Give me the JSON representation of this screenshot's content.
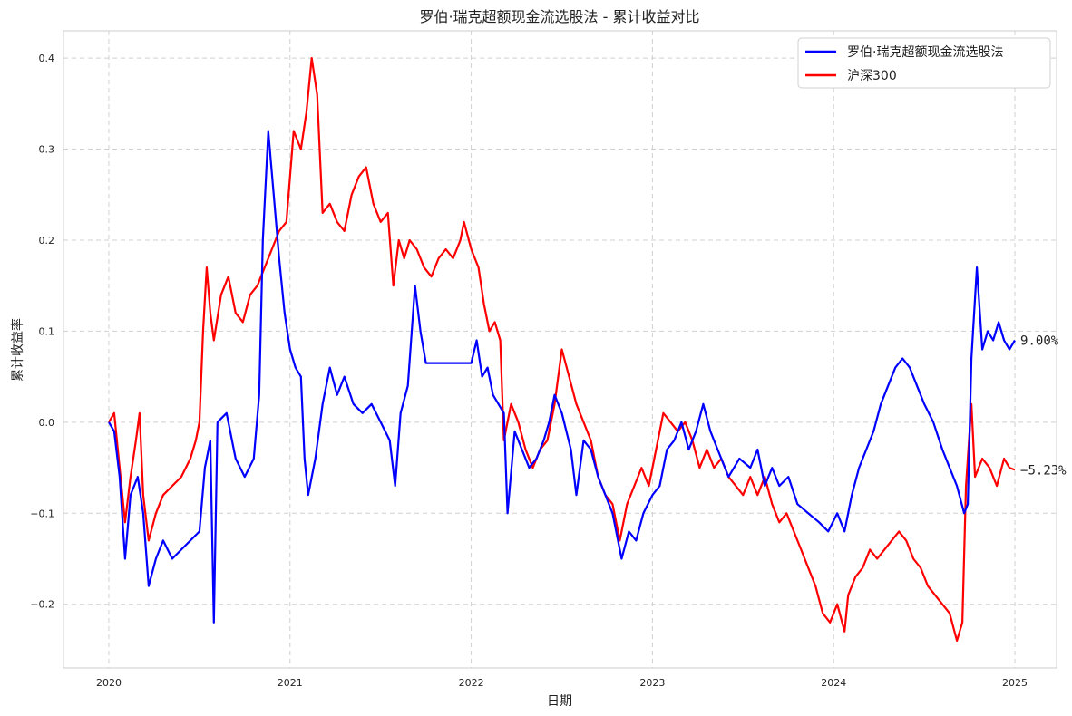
{
  "chart_data": {
    "type": "line",
    "title": "罗伯·瑞克超额现金流选股法 - 累计收益对比",
    "xlabel": "日期",
    "ylabel": "累计收益率",
    "xlim": [
      2019.75,
      2025.23
    ],
    "ylim": [
      -0.27,
      0.43
    ],
    "xticks": [
      2020,
      2021,
      2022,
      2023,
      2024,
      2025
    ],
    "xtick_labels": [
      "2020",
      "2021",
      "2022",
      "2023",
      "2024",
      "2025"
    ],
    "yticks": [
      -0.2,
      -0.1,
      0.0,
      0.1,
      0.2,
      0.3,
      0.4
    ],
    "ytick_labels": [
      "−0.2",
      "−0.1",
      "0.0",
      "0.1",
      "0.2",
      "0.3",
      "0.4"
    ],
    "grid": true,
    "legend_position": "top-right",
    "series": [
      {
        "name": "罗伯·瑞克超额现金流选股法",
        "color": "#0000ff",
        "end_label": "9.00%",
        "points": [
          [
            2020.0,
            0.0
          ],
          [
            2020.03,
            -0.01
          ],
          [
            2020.06,
            -0.06
          ],
          [
            2020.09,
            -0.15
          ],
          [
            2020.12,
            -0.08
          ],
          [
            2020.16,
            -0.06
          ],
          [
            2020.19,
            -0.1
          ],
          [
            2020.22,
            -0.18
          ],
          [
            2020.26,
            -0.15
          ],
          [
            2020.3,
            -0.13
          ],
          [
            2020.35,
            -0.15
          ],
          [
            2020.4,
            -0.14
          ],
          [
            2020.45,
            -0.13
          ],
          [
            2020.5,
            -0.12
          ],
          [
            2020.53,
            -0.05
          ],
          [
            2020.56,
            -0.02
          ],
          [
            2020.58,
            -0.22
          ],
          [
            2020.6,
            0.0
          ],
          [
            2020.65,
            0.01
          ],
          [
            2020.7,
            -0.04
          ],
          [
            2020.75,
            -0.06
          ],
          [
            2020.8,
            -0.04
          ],
          [
            2020.83,
            0.03
          ],
          [
            2020.85,
            0.2
          ],
          [
            2020.88,
            0.32
          ],
          [
            2020.91,
            0.25
          ],
          [
            2020.94,
            0.18
          ],
          [
            2020.97,
            0.12
          ],
          [
            2021.0,
            0.08
          ],
          [
            2021.03,
            0.06
          ],
          [
            2021.06,
            0.05
          ],
          [
            2021.08,
            -0.04
          ],
          [
            2021.1,
            -0.08
          ],
          [
            2021.14,
            -0.04
          ],
          [
            2021.18,
            0.02
          ],
          [
            2021.22,
            0.06
          ],
          [
            2021.26,
            0.03
          ],
          [
            2021.3,
            0.05
          ],
          [
            2021.35,
            0.02
          ],
          [
            2021.4,
            0.01
          ],
          [
            2021.45,
            0.02
          ],
          [
            2021.5,
            0.0
          ],
          [
            2021.55,
            -0.02
          ],
          [
            2021.58,
            -0.07
          ],
          [
            2021.61,
            0.01
          ],
          [
            2021.65,
            0.04
          ],
          [
            2021.69,
            0.15
          ],
          [
            2021.72,
            0.1
          ],
          [
            2021.75,
            0.065
          ],
          [
            2021.82,
            0.065
          ],
          [
            2021.9,
            0.065
          ],
          [
            2022.0,
            0.065
          ],
          [
            2022.03,
            0.09
          ],
          [
            2022.06,
            0.05
          ],
          [
            2022.09,
            0.06
          ],
          [
            2022.12,
            0.03
          ],
          [
            2022.15,
            0.02
          ],
          [
            2022.18,
            0.01
          ],
          [
            2022.2,
            -0.1
          ],
          [
            2022.24,
            -0.01
          ],
          [
            2022.28,
            -0.03
          ],
          [
            2022.32,
            -0.05
          ],
          [
            2022.36,
            -0.04
          ],
          [
            2022.4,
            -0.02
          ],
          [
            2022.43,
            0.0
          ],
          [
            2022.46,
            0.03
          ],
          [
            2022.5,
            0.01
          ],
          [
            2022.55,
            -0.03
          ],
          [
            2022.58,
            -0.08
          ],
          [
            2022.62,
            -0.02
          ],
          [
            2022.66,
            -0.03
          ],
          [
            2022.7,
            -0.06
          ],
          [
            2022.74,
            -0.08
          ],
          [
            2022.78,
            -0.1
          ],
          [
            2022.83,
            -0.15
          ],
          [
            2022.87,
            -0.12
          ],
          [
            2022.91,
            -0.13
          ],
          [
            2022.95,
            -0.1
          ],
          [
            2023.0,
            -0.08
          ],
          [
            2023.04,
            -0.07
          ],
          [
            2023.08,
            -0.03
          ],
          [
            2023.12,
            -0.02
          ],
          [
            2023.16,
            0.0
          ],
          [
            2023.2,
            -0.03
          ],
          [
            2023.24,
            -0.01
          ],
          [
            2023.28,
            0.02
          ],
          [
            2023.32,
            -0.01
          ],
          [
            2023.36,
            -0.03
          ],
          [
            2023.42,
            -0.06
          ],
          [
            2023.48,
            -0.04
          ],
          [
            2023.54,
            -0.05
          ],
          [
            2023.58,
            -0.03
          ],
          [
            2023.62,
            -0.07
          ],
          [
            2023.66,
            -0.05
          ],
          [
            2023.7,
            -0.07
          ],
          [
            2023.75,
            -0.06
          ],
          [
            2023.8,
            -0.09
          ],
          [
            2023.86,
            -0.1
          ],
          [
            2023.92,
            -0.11
          ],
          [
            2023.97,
            -0.12
          ],
          [
            2024.02,
            -0.1
          ],
          [
            2024.06,
            -0.12
          ],
          [
            2024.1,
            -0.08
          ],
          [
            2024.14,
            -0.05
          ],
          [
            2024.18,
            -0.03
          ],
          [
            2024.22,
            -0.01
          ],
          [
            2024.26,
            0.02
          ],
          [
            2024.3,
            0.04
          ],
          [
            2024.34,
            0.06
          ],
          [
            2024.38,
            0.07
          ],
          [
            2024.42,
            0.06
          ],
          [
            2024.46,
            0.04
          ],
          [
            2024.5,
            0.02
          ],
          [
            2024.55,
            0.0
          ],
          [
            2024.6,
            -0.03
          ],
          [
            2024.64,
            -0.05
          ],
          [
            2024.68,
            -0.07
          ],
          [
            2024.72,
            -0.1
          ],
          [
            2024.74,
            -0.09
          ],
          [
            2024.76,
            0.07
          ],
          [
            2024.79,
            0.17
          ],
          [
            2024.82,
            0.08
          ],
          [
            2024.85,
            0.1
          ],
          [
            2024.88,
            0.09
          ],
          [
            2024.91,
            0.11
          ],
          [
            2024.94,
            0.09
          ],
          [
            2024.97,
            0.08
          ],
          [
            2025.0,
            0.09
          ]
        ]
      },
      {
        "name": "沪深300",
        "color": "#ff0000",
        "end_label": "−5.23%",
        "points": [
          [
            2020.0,
            0.0
          ],
          [
            2020.03,
            0.01
          ],
          [
            2020.06,
            -0.05
          ],
          [
            2020.09,
            -0.11
          ],
          [
            2020.12,
            -0.06
          ],
          [
            2020.15,
            -0.02
          ],
          [
            2020.17,
            0.01
          ],
          [
            2020.19,
            -0.08
          ],
          [
            2020.22,
            -0.13
          ],
          [
            2020.26,
            -0.1
          ],
          [
            2020.3,
            -0.08
          ],
          [
            2020.35,
            -0.07
          ],
          [
            2020.4,
            -0.06
          ],
          [
            2020.45,
            -0.04
          ],
          [
            2020.48,
            -0.02
          ],
          [
            2020.5,
            0.0
          ],
          [
            2020.52,
            0.1
          ],
          [
            2020.54,
            0.17
          ],
          [
            2020.56,
            0.12
          ],
          [
            2020.58,
            0.09
          ],
          [
            2020.62,
            0.14
          ],
          [
            2020.66,
            0.16
          ],
          [
            2020.7,
            0.12
          ],
          [
            2020.74,
            0.11
          ],
          [
            2020.78,
            0.14
          ],
          [
            2020.82,
            0.15
          ],
          [
            2020.86,
            0.17
          ],
          [
            2020.9,
            0.19
          ],
          [
            2020.94,
            0.21
          ],
          [
            2020.98,
            0.22
          ],
          [
            2021.02,
            0.32
          ],
          [
            2021.06,
            0.3
          ],
          [
            2021.09,
            0.34
          ],
          [
            2021.12,
            0.4
          ],
          [
            2021.15,
            0.36
          ],
          [
            2021.18,
            0.23
          ],
          [
            2021.22,
            0.24
          ],
          [
            2021.26,
            0.22
          ],
          [
            2021.3,
            0.21
          ],
          [
            2021.34,
            0.25
          ],
          [
            2021.38,
            0.27
          ],
          [
            2021.42,
            0.28
          ],
          [
            2021.46,
            0.24
          ],
          [
            2021.5,
            0.22
          ],
          [
            2021.54,
            0.23
          ],
          [
            2021.57,
            0.15
          ],
          [
            2021.6,
            0.2
          ],
          [
            2021.63,
            0.18
          ],
          [
            2021.66,
            0.2
          ],
          [
            2021.7,
            0.19
          ],
          [
            2021.74,
            0.17
          ],
          [
            2021.78,
            0.16
          ],
          [
            2021.82,
            0.18
          ],
          [
            2021.86,
            0.19
          ],
          [
            2021.9,
            0.18
          ],
          [
            2021.94,
            0.2
          ],
          [
            2021.96,
            0.22
          ],
          [
            2022.0,
            0.19
          ],
          [
            2022.04,
            0.17
          ],
          [
            2022.07,
            0.13
          ],
          [
            2022.1,
            0.1
          ],
          [
            2022.13,
            0.11
          ],
          [
            2022.16,
            0.09
          ],
          [
            2022.18,
            -0.02
          ],
          [
            2022.22,
            0.02
          ],
          [
            2022.26,
            0.0
          ],
          [
            2022.3,
            -0.03
          ],
          [
            2022.34,
            -0.05
          ],
          [
            2022.38,
            -0.03
          ],
          [
            2022.42,
            -0.02
          ],
          [
            2022.46,
            0.02
          ],
          [
            2022.5,
            0.08
          ],
          [
            2022.54,
            0.05
          ],
          [
            2022.58,
            0.02
          ],
          [
            2022.62,
            0.0
          ],
          [
            2022.66,
            -0.02
          ],
          [
            2022.7,
            -0.06
          ],
          [
            2022.74,
            -0.08
          ],
          [
            2022.78,
            -0.09
          ],
          [
            2022.82,
            -0.13
          ],
          [
            2022.86,
            -0.09
          ],
          [
            2022.9,
            -0.07
          ],
          [
            2022.94,
            -0.05
          ],
          [
            2022.98,
            -0.07
          ],
          [
            2023.02,
            -0.03
          ],
          [
            2023.06,
            0.01
          ],
          [
            2023.1,
            0.0
          ],
          [
            2023.14,
            -0.01
          ],
          [
            2023.18,
            0.0
          ],
          [
            2023.22,
            -0.02
          ],
          [
            2023.26,
            -0.05
          ],
          [
            2023.3,
            -0.03
          ],
          [
            2023.34,
            -0.05
          ],
          [
            2023.38,
            -0.04
          ],
          [
            2023.42,
            -0.06
          ],
          [
            2023.46,
            -0.07
          ],
          [
            2023.5,
            -0.08
          ],
          [
            2023.54,
            -0.06
          ],
          [
            2023.58,
            -0.08
          ],
          [
            2023.62,
            -0.06
          ],
          [
            2023.66,
            -0.09
          ],
          [
            2023.7,
            -0.11
          ],
          [
            2023.74,
            -0.1
          ],
          [
            2023.78,
            -0.12
          ],
          [
            2023.82,
            -0.14
          ],
          [
            2023.86,
            -0.16
          ],
          [
            2023.9,
            -0.18
          ],
          [
            2023.94,
            -0.21
          ],
          [
            2023.98,
            -0.22
          ],
          [
            2024.02,
            -0.2
          ],
          [
            2024.06,
            -0.23
          ],
          [
            2024.08,
            -0.19
          ],
          [
            2024.12,
            -0.17
          ],
          [
            2024.16,
            -0.16
          ],
          [
            2024.2,
            -0.14
          ],
          [
            2024.24,
            -0.15
          ],
          [
            2024.28,
            -0.14
          ],
          [
            2024.32,
            -0.13
          ],
          [
            2024.36,
            -0.12
          ],
          [
            2024.4,
            -0.13
          ],
          [
            2024.44,
            -0.15
          ],
          [
            2024.48,
            -0.16
          ],
          [
            2024.52,
            -0.18
          ],
          [
            2024.56,
            -0.19
          ],
          [
            2024.6,
            -0.2
          ],
          [
            2024.64,
            -0.21
          ],
          [
            2024.68,
            -0.24
          ],
          [
            2024.71,
            -0.22
          ],
          [
            2024.73,
            -0.07
          ],
          [
            2024.76,
            0.02
          ],
          [
            2024.78,
            -0.06
          ],
          [
            2024.82,
            -0.04
          ],
          [
            2024.86,
            -0.05
          ],
          [
            2024.9,
            -0.07
          ],
          [
            2024.94,
            -0.04
          ],
          [
            2024.97,
            -0.05
          ],
          [
            2025.0,
            -0.0523
          ]
        ]
      }
    ]
  }
}
